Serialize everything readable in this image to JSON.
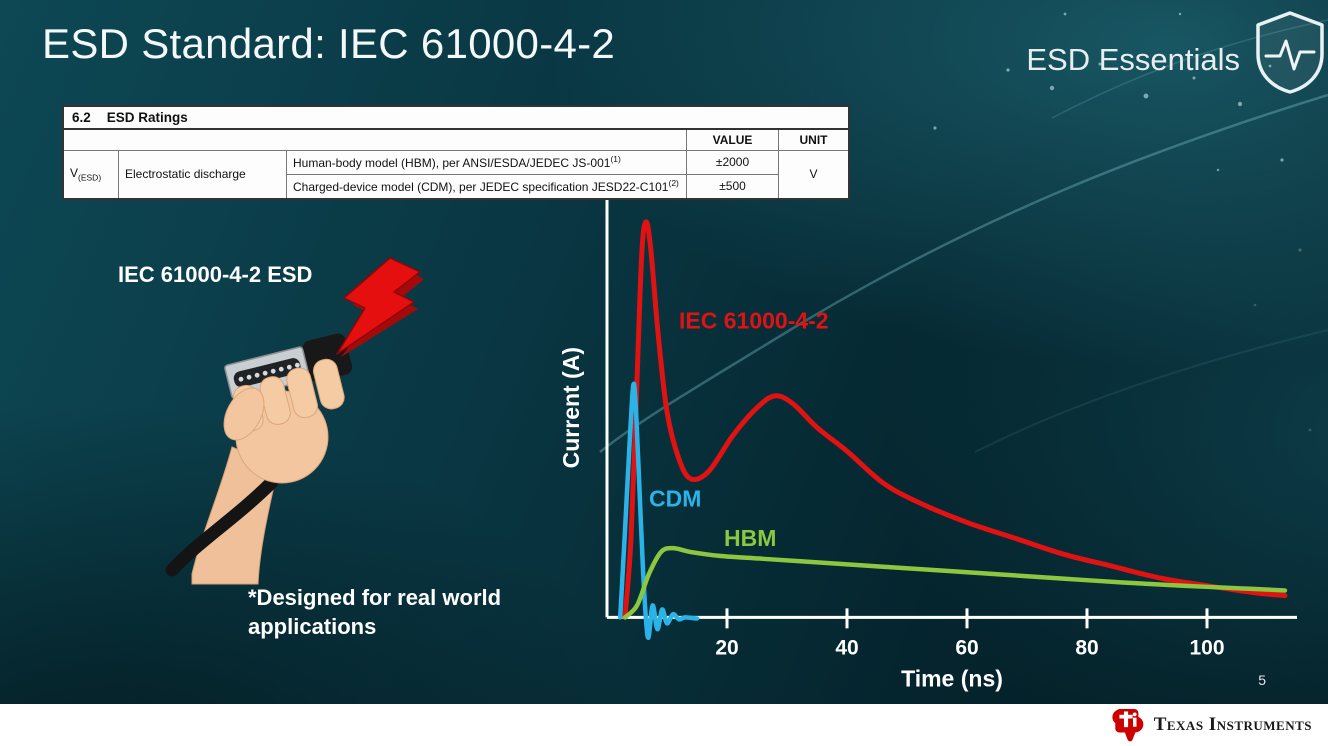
{
  "slide": {
    "title": "ESD Standard: IEC 61000-4-2",
    "series_brand": "ESD Essentials",
    "page_number": "5",
    "logo_text": "Texas Instruments"
  },
  "ratings_table": {
    "section_number": "6.2",
    "section_title": "ESD Ratings",
    "value_header": "VALUE",
    "unit_header": "UNIT",
    "param_base": "V",
    "param_sub": "(ESD)",
    "param_name": "Electrostatic discharge",
    "rows": [
      {
        "desc": "Human-body model (HBM), per ANSI/ESDA/JEDEC JS-001",
        "sup": "(1)",
        "value": "±2000"
      },
      {
        "desc": "Charged-device model (CDM), per JEDEC specification JESD22-C101",
        "sup": "(2)",
        "value": "±500"
      }
    ],
    "unit": "V"
  },
  "illustration": {
    "label": "IEC 61000-4-2 ESD",
    "note_lines": [
      "*Designed for real world",
      "applications"
    ]
  },
  "chart_data": {
    "type": "line",
    "title": "",
    "xlabel": "Time (ns)",
    "ylabel": "Current (A)",
    "x_ticks": [
      20,
      40,
      60,
      80,
      100
    ],
    "xlim": [
      0,
      115
    ],
    "ylim": [
      -8,
      105
    ],
    "grid": false,
    "y_axis_numeric_labels": false,
    "y_scale_note": "relative amplitude, no numeric y ticks shown",
    "legend": "inline-colored-labels",
    "axis_color": "#ffffff",
    "series": [
      {
        "name": "IEC 61000-4-2",
        "color": "#e01212",
        "label_x": 12,
        "label_y": 73,
        "points": [
          [
            3,
            0
          ],
          [
            4,
            20
          ],
          [
            5,
            60
          ],
          [
            5.8,
            92
          ],
          [
            6.5,
            100
          ],
          [
            7.3,
            93
          ],
          [
            8.5,
            72
          ],
          [
            10,
            52
          ],
          [
            12,
            40
          ],
          [
            14,
            35
          ],
          [
            17,
            37
          ],
          [
            21,
            46
          ],
          [
            25,
            53
          ],
          [
            28,
            56
          ],
          [
            31,
            54
          ],
          [
            35,
            48
          ],
          [
            40,
            42
          ],
          [
            46,
            34
          ],
          [
            52,
            29
          ],
          [
            60,
            24
          ],
          [
            68,
            20
          ],
          [
            76,
            16
          ],
          [
            84,
            13
          ],
          [
            92,
            10
          ],
          [
            100,
            8
          ],
          [
            108,
            6.2
          ],
          [
            113,
            5.5
          ]
        ]
      },
      {
        "name": "CDM",
        "color": "#2bb3e8",
        "label_x": 7,
        "label_y": 28,
        "points": [
          [
            2.2,
            0
          ],
          [
            3,
            22
          ],
          [
            3.8,
            45
          ],
          [
            4.5,
            59
          ],
          [
            5.2,
            40
          ],
          [
            6,
            12
          ],
          [
            6.8,
            -5
          ],
          [
            7.6,
            3
          ],
          [
            8.4,
            -3
          ],
          [
            9.2,
            2
          ],
          [
            10,
            -1.5
          ],
          [
            11,
            0.8
          ],
          [
            12,
            -0.5
          ],
          [
            13,
            0
          ],
          [
            15,
            -0.3
          ]
        ]
      },
      {
        "name": "HBM",
        "color": "#8dc63f",
        "label_x": 19.5,
        "label_y": 18,
        "points": [
          [
            3,
            0
          ],
          [
            5,
            3
          ],
          [
            7,
            11
          ],
          [
            9,
            16.5
          ],
          [
            11,
            17.5
          ],
          [
            14,
            16.5
          ],
          [
            19,
            15.5
          ],
          [
            26,
            14.8
          ],
          [
            36,
            13.8
          ],
          [
            46,
            12.8
          ],
          [
            56,
            11.8
          ],
          [
            66,
            10.8
          ],
          [
            76,
            9.8
          ],
          [
            86,
            8.8
          ],
          [
            96,
            8
          ],
          [
            106,
            7.3
          ],
          [
            113,
            6.8
          ]
        ]
      }
    ]
  }
}
